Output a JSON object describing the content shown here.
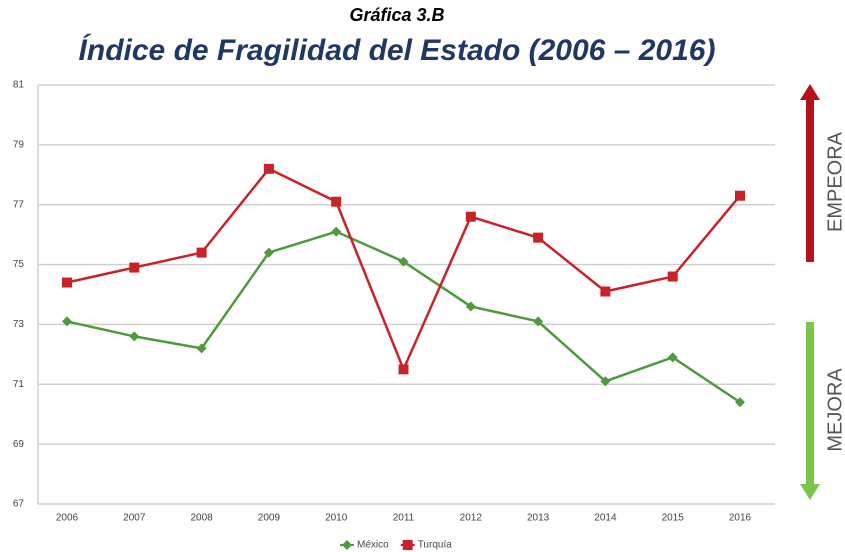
{
  "chart_data": {
    "type": "line",
    "title": "Gráfica 3.B",
    "subtitle": "Índice de Fragilidad del Estado (2006 – 2016)",
    "categories": [
      "2006",
      "2007",
      "2008",
      "2009",
      "2010",
      "2011",
      "2012",
      "2013",
      "2014",
      "2015",
      "2016"
    ],
    "series": [
      {
        "name": "México",
        "color": "#4e9a3c",
        "marker": "diamond",
        "values": [
          73.1,
          72.6,
          72.2,
          75.4,
          76.1,
          75.1,
          73.6,
          73.1,
          71.1,
          71.9,
          70.4
        ]
      },
      {
        "name": "Turquía",
        "color": "#c8232a",
        "marker": "square",
        "values": [
          74.4,
          74.9,
          75.4,
          78.2,
          77.1,
          71.5,
          76.6,
          75.9,
          74.1,
          74.6,
          77.3
        ]
      }
    ],
    "ylim": [
      67,
      81
    ],
    "yticks": [
      67,
      69,
      71,
      73,
      75,
      77,
      79,
      81
    ],
    "grid": true,
    "legend": "bottom",
    "annotations": [
      "EMPEORA",
      "MEJORA"
    ]
  }
}
